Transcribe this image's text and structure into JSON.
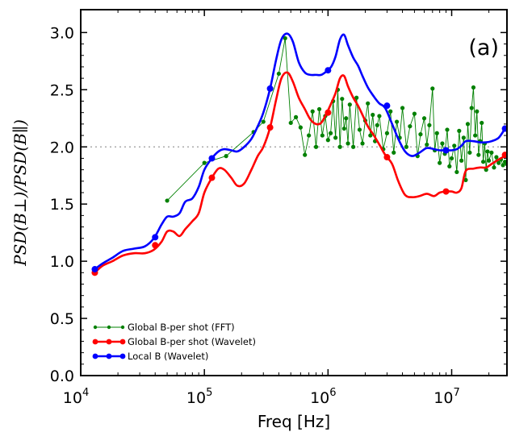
{
  "chart_data": {
    "type": "line",
    "panel_label": "(a)",
    "xlabel": "Freq [Hz]",
    "ylabel": "PSD(B⊥)/PSD(B∥)",
    "xscale": "log",
    "xlim": [
      10000,
      28000000
    ],
    "ylim": [
      0,
      3.2
    ],
    "xticks": [
      {
        "value": 10000,
        "base": "10",
        "exp": "4"
      },
      {
        "value": 100000,
        "base": "10",
        "exp": "5"
      },
      {
        "value": 1000000,
        "base": "10",
        "exp": "6"
      },
      {
        "value": 10000000,
        "base": "10",
        "exp": "7"
      }
    ],
    "yticks": [
      {
        "value": 0.0,
        "label": "0.0"
      },
      {
        "value": 0.5,
        "label": "0.5"
      },
      {
        "value": 1.0,
        "label": "1.0"
      },
      {
        "value": 1.5,
        "label": "1.5"
      },
      {
        "value": 2.0,
        "label": "2.0"
      },
      {
        "value": 2.5,
        "label": "2.5"
      },
      {
        "value": 3.0,
        "label": "3.0"
      }
    ],
    "reference_line": {
      "y": 2.0,
      "style": "dotted",
      "color": "#999999"
    },
    "legend_position": "lower-left",
    "series": [
      {
        "name": "Global B-per shot (FFT)",
        "color": "#008000",
        "style": "thin-line-small-markers",
        "x": [
          50000,
          100000,
          150000,
          250000,
          300000,
          400000,
          450000,
          500000,
          550000,
          600000,
          650000,
          700000,
          750000,
          800000,
          850000,
          900000,
          950000,
          1000000,
          1050000,
          1100000,
          1150000,
          1200000,
          1250000,
          1300000,
          1350000,
          1400000,
          1450000,
          1500000,
          1600000,
          1700000,
          1800000,
          1900000,
          2000000,
          2100000,
          2200000,
          2300000,
          2400000,
          2500000,
          2600000,
          2800000,
          3000000,
          3200000,
          3400000,
          3600000,
          3800000,
          4000000,
          4300000,
          4600000,
          5000000,
          5300000,
          5600000,
          6000000,
          6300000,
          6600000,
          7000000,
          7300000,
          7600000,
          8000000,
          8400000,
          8800000,
          9200000,
          9600000,
          10000000,
          10500000,
          11000000,
          11500000,
          12000000,
          12500000,
          13000000,
          13500000,
          14000000,
          14500000,
          15000000,
          15500000,
          16000000,
          16500000,
          17000000,
          17500000,
          18000000,
          18500000,
          19000000,
          19500000,
          20000000,
          21000000,
          22000000,
          23000000,
          24000000,
          25000000,
          26000000,
          27000000,
          28000000
        ],
        "y": [
          1.53,
          1.86,
          1.92,
          2.13,
          2.22,
          2.64,
          2.95,
          2.21,
          2.26,
          2.17,
          1.93,
          2.1,
          2.31,
          2.0,
          2.33,
          2.1,
          2.27,
          2.06,
          2.12,
          2.4,
          2.08,
          2.5,
          2.0,
          2.42,
          2.16,
          2.25,
          2.03,
          2.37,
          2.0,
          2.43,
          2.15,
          2.03,
          2.23,
          2.38,
          2.1,
          2.28,
          2.05,
          2.19,
          2.27,
          1.98,
          2.12,
          2.31,
          1.95,
          2.22,
          2.08,
          2.34,
          2.0,
          2.18,
          2.29,
          1.92,
          2.11,
          2.25,
          2.02,
          2.19,
          2.51,
          1.97,
          2.12,
          1.86,
          2.03,
          1.94,
          2.15,
          1.83,
          1.9,
          2.01,
          1.78,
          2.14,
          1.88,
          2.08,
          1.71,
          2.2,
          1.95,
          2.34,
          2.52,
          2.1,
          2.31,
          1.93,
          2.05,
          2.21,
          1.87,
          2.03,
          1.8,
          1.96,
          1.88,
          1.95,
          1.82,
          1.91,
          1.86,
          1.89,
          1.84,
          1.87,
          1.85
        ]
      },
      {
        "name": "Global B-per shot (Wavelet)",
        "color": "#ff0000",
        "style": "thick-line-markers",
        "x": [
          13000,
          15000,
          18000,
          22000,
          27000,
          33000,
          39000,
          45000,
          50000,
          56000,
          63000,
          70000,
          80000,
          90000,
          100000,
          115000,
          130000,
          145000,
          165000,
          185000,
          210000,
          240000,
          270000,
          300000,
          340000,
          380000,
          420000,
          470000,
          520000,
          580000,
          650000,
          720000,
          800000,
          880000,
          970000,
          1060000,
          1150000,
          1250000,
          1350000,
          1450000,
          1600000,
          1750000,
          1900000,
          2100000,
          2350000,
          2600000,
          2900000,
          3300000,
          3700000,
          4200000,
          4800000,
          5500000,
          6300000,
          7200000,
          8000000,
          9000000,
          10000000,
          11000000,
          12000000,
          13000000,
          15000000,
          17000000,
          19000000,
          21000000,
          24000000,
          27000000,
          28000000
        ],
        "y": [
          0.9,
          0.96,
          1.0,
          1.05,
          1.07,
          1.07,
          1.1,
          1.17,
          1.26,
          1.26,
          1.22,
          1.28,
          1.35,
          1.42,
          1.6,
          1.73,
          1.81,
          1.8,
          1.73,
          1.66,
          1.68,
          1.8,
          1.92,
          2.0,
          2.17,
          2.41,
          2.6,
          2.65,
          2.57,
          2.43,
          2.33,
          2.24,
          2.2,
          2.21,
          2.29,
          2.38,
          2.47,
          2.6,
          2.62,
          2.53,
          2.43,
          2.36,
          2.28,
          2.18,
          2.1,
          2.02,
          1.93,
          1.85,
          1.7,
          1.58,
          1.56,
          1.57,
          1.59,
          1.57,
          1.6,
          1.61,
          1.61,
          1.6,
          1.64,
          1.79,
          1.81,
          1.82,
          1.82,
          1.85,
          1.89,
          1.92,
          1.93
        ],
        "markers_x": [
          13000,
          40000,
          115000,
          340000,
          1000000,
          3000000,
          9000000,
          27000000
        ],
        "markers_y": [
          0.9,
          1.14,
          1.73,
          2.17,
          2.3,
          1.91,
          1.61,
          1.93
        ]
      },
      {
        "name": "Local B (Wavelet)",
        "color": "#0000ff",
        "style": "thick-line-markers",
        "x": [
          13000,
          15000,
          18000,
          22000,
          27000,
          33000,
          39000,
          45000,
          50000,
          56000,
          63000,
          70000,
          80000,
          90000,
          100000,
          115000,
          130000,
          145000,
          165000,
          185000,
          210000,
          240000,
          270000,
          300000,
          340000,
          380000,
          420000,
          470000,
          520000,
          580000,
          650000,
          720000,
          800000,
          880000,
          970000,
          1060000,
          1150000,
          1250000,
          1350000,
          1450000,
          1600000,
          1750000,
          1900000,
          2100000,
          2350000,
          2600000,
          2900000,
          3300000,
          3700000,
          4200000,
          4800000,
          5500000,
          6300000,
          7200000,
          8000000,
          9000000,
          10000000,
          11000000,
          12000000,
          13000000,
          15000000,
          17000000,
          19000000,
          21000000,
          24000000,
          27000000
        ],
        "y": [
          0.93,
          0.98,
          1.03,
          1.09,
          1.11,
          1.13,
          1.2,
          1.32,
          1.39,
          1.39,
          1.42,
          1.52,
          1.55,
          1.65,
          1.8,
          1.9,
          1.96,
          1.98,
          1.97,
          1.96,
          2.0,
          2.07,
          2.18,
          2.3,
          2.51,
          2.76,
          2.94,
          2.99,
          2.92,
          2.74,
          2.65,
          2.63,
          2.63,
          2.63,
          2.66,
          2.7,
          2.79,
          2.94,
          2.98,
          2.89,
          2.78,
          2.71,
          2.62,
          2.52,
          2.44,
          2.38,
          2.34,
          2.2,
          2.07,
          1.96,
          1.92,
          1.95,
          1.99,
          1.98,
          1.97,
          1.97,
          1.97,
          1.98,
          2.01,
          2.05,
          2.05,
          2.04,
          2.04,
          2.05,
          2.08,
          2.16
        ],
        "markers_x": [
          13000,
          40000,
          115000,
          340000,
          1000000,
          3000000,
          9000000,
          27000000
        ],
        "markers_y": [
          0.93,
          1.21,
          1.9,
          2.51,
          2.67,
          2.36,
          1.97,
          2.16
        ]
      }
    ]
  }
}
